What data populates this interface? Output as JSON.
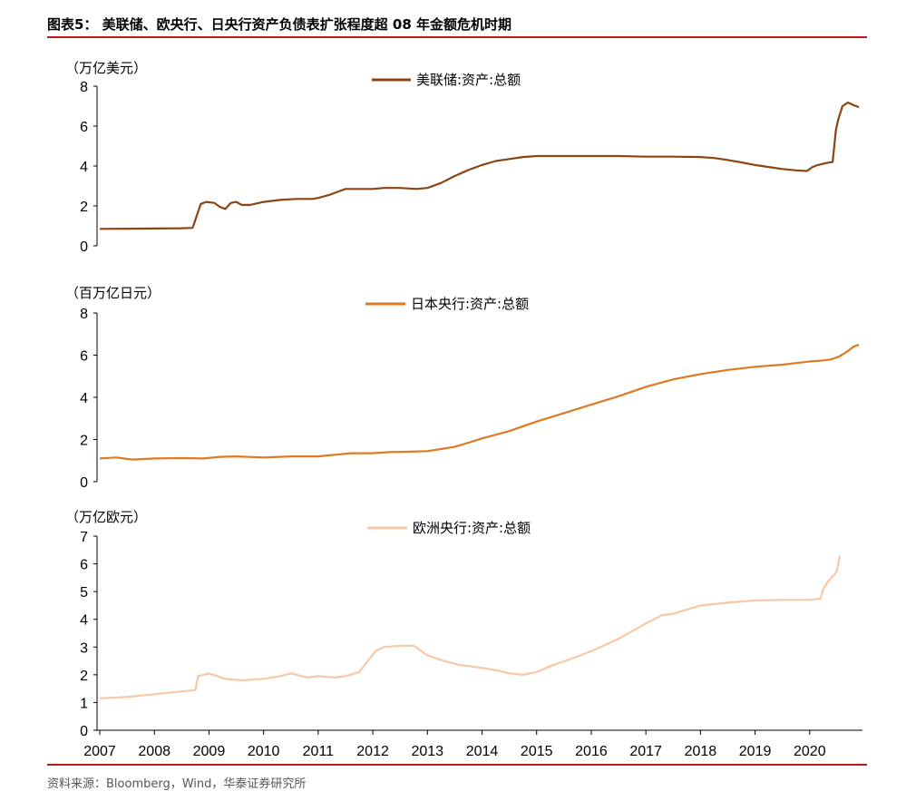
{
  "header": {
    "title": "图表5：  美联储、欧央行、日央行资产负债表扩张程度超 08 年金额危机时期"
  },
  "footer": {
    "source": "资料来源：Bloomberg，Wind，华泰证券研究所"
  },
  "colors": {
    "rule": "#c0171c",
    "fed": "#8b4513",
    "boj": "#e07a22",
    "ecb": "#f7c8a6"
  },
  "chart_data": [
    {
      "type": "line",
      "unit_label": "（万亿美元）",
      "ylim": [
        0,
        8
      ],
      "yticks": [
        "0",
        "2",
        "4",
        "6",
        "8"
      ],
      "xlim": [
        2007,
        2020.9
      ],
      "grid": false,
      "legend_position": "top-center",
      "series": [
        {
          "name": "美联储:资产:总额",
          "x": [
            2007.0,
            2007.5,
            2008.0,
            2008.5,
            2008.7,
            2008.75,
            2008.85,
            2008.95,
            2009.1,
            2009.2,
            2009.3,
            2009.4,
            2009.5,
            2009.6,
            2009.75,
            2010.0,
            2010.3,
            2010.6,
            2010.9,
            2011.0,
            2011.2,
            2011.5,
            2011.8,
            2012.0,
            2012.2,
            2012.5,
            2012.8,
            2013.0,
            2013.25,
            2013.5,
            2013.75,
            2014.0,
            2014.25,
            2014.5,
            2014.75,
            2015.0,
            2015.3,
            2015.6,
            2016.0,
            2016.5,
            2017.0,
            2017.5,
            2018.0,
            2018.25,
            2018.5,
            2018.75,
            2019.0,
            2019.25,
            2019.5,
            2019.75,
            2019.95,
            2020.05,
            2020.15,
            2020.3,
            2020.42,
            2020.48,
            2020.52,
            2020.6,
            2020.7,
            2020.8,
            2020.9
          ],
          "values": [
            0.85,
            0.86,
            0.87,
            0.88,
            0.9,
            1.3,
            2.1,
            2.2,
            2.15,
            1.95,
            1.85,
            2.15,
            2.2,
            2.05,
            2.05,
            2.2,
            2.3,
            2.35,
            2.35,
            2.4,
            2.55,
            2.85,
            2.85,
            2.85,
            2.9,
            2.9,
            2.85,
            2.9,
            3.15,
            3.5,
            3.8,
            4.05,
            4.25,
            4.35,
            4.45,
            4.5,
            4.5,
            4.5,
            4.5,
            4.5,
            4.47,
            4.47,
            4.45,
            4.4,
            4.3,
            4.18,
            4.05,
            3.95,
            3.85,
            3.78,
            3.75,
            3.95,
            4.05,
            4.15,
            4.2,
            5.8,
            6.3,
            7.0,
            7.18,
            7.05,
            6.95
          ]
        }
      ]
    },
    {
      "type": "line",
      "unit_label": "（百万亿日元）",
      "ylim": [
        0,
        8
      ],
      "yticks": [
        "0",
        "2",
        "4",
        "6",
        "8"
      ],
      "xlim": [
        2007,
        2020.9
      ],
      "grid": false,
      "legend_position": "top-center",
      "series": [
        {
          "name": "日本央行:资产:总额",
          "x": [
            2007.0,
            2007.3,
            2007.6,
            2008.0,
            2008.5,
            2008.9,
            2009.2,
            2009.5,
            2010.0,
            2010.5,
            2011.0,
            2011.2,
            2011.4,
            2011.6,
            2012.0,
            2012.3,
            2012.6,
            2013.0,
            2013.25,
            2013.5,
            2013.75,
            2014.0,
            2014.5,
            2015.0,
            2015.5,
            2016.0,
            2016.5,
            2017.0,
            2017.5,
            2018.0,
            2018.5,
            2019.0,
            2019.5,
            2020.0,
            2020.25,
            2020.4,
            2020.55,
            2020.7,
            2020.8,
            2020.9
          ],
          "values": [
            1.1,
            1.15,
            1.05,
            1.1,
            1.12,
            1.1,
            1.18,
            1.2,
            1.15,
            1.2,
            1.2,
            1.25,
            1.3,
            1.35,
            1.35,
            1.4,
            1.42,
            1.45,
            1.55,
            1.65,
            1.85,
            2.05,
            2.4,
            2.85,
            3.25,
            3.65,
            4.05,
            4.5,
            4.85,
            5.1,
            5.3,
            5.45,
            5.55,
            5.7,
            5.75,
            5.8,
            5.95,
            6.2,
            6.4,
            6.5
          ]
        }
      ]
    },
    {
      "type": "line",
      "unit_label": "（万亿欧元）",
      "ylim": [
        0,
        7
      ],
      "yticks": [
        "0",
        "1",
        "2",
        "3",
        "4",
        "5",
        "6",
        "7"
      ],
      "xlim": [
        2007,
        2020.9
      ],
      "grid": false,
      "legend_position": "top-center",
      "series": [
        {
          "name": "欧洲央行:资产:总额",
          "x": [
            2007.0,
            2007.5,
            2008.0,
            2008.5,
            2008.75,
            2008.8,
            2009.0,
            2009.3,
            2009.6,
            2010.0,
            2010.3,
            2010.5,
            2010.8,
            2011.0,
            2011.3,
            2011.5,
            2011.75,
            2011.95,
            2012.05,
            2012.2,
            2012.5,
            2012.75,
            2013.0,
            2013.3,
            2013.6,
            2014.0,
            2014.3,
            2014.5,
            2014.75,
            2015.0,
            2015.3,
            2015.6,
            2016.0,
            2016.5,
            2017.0,
            2017.2,
            2017.3,
            2017.5,
            2017.75,
            2018.0,
            2018.5,
            2019.0,
            2019.5,
            2020.0,
            2020.2,
            2020.25,
            2020.35,
            2020.45,
            2020.5,
            2020.55
          ],
          "values": [
            1.15,
            1.2,
            1.3,
            1.4,
            1.45,
            1.95,
            2.05,
            1.85,
            1.8,
            1.85,
            1.95,
            2.05,
            1.9,
            1.95,
            1.9,
            1.95,
            2.1,
            2.6,
            2.85,
            3.0,
            3.05,
            3.05,
            2.7,
            2.5,
            2.35,
            2.25,
            2.15,
            2.05,
            2.0,
            2.1,
            2.35,
            2.55,
            2.85,
            3.3,
            3.85,
            4.05,
            4.15,
            4.2,
            4.35,
            4.5,
            4.6,
            4.68,
            4.7,
            4.7,
            4.75,
            5.1,
            5.4,
            5.6,
            5.75,
            6.3
          ]
        }
      ]
    }
  ],
  "xaxis": {
    "ticks": [
      "2007",
      "2008",
      "2009",
      "2010",
      "2011",
      "2012",
      "2013",
      "2014",
      "2015",
      "2016",
      "2017",
      "2018",
      "2019",
      "2020"
    ]
  }
}
